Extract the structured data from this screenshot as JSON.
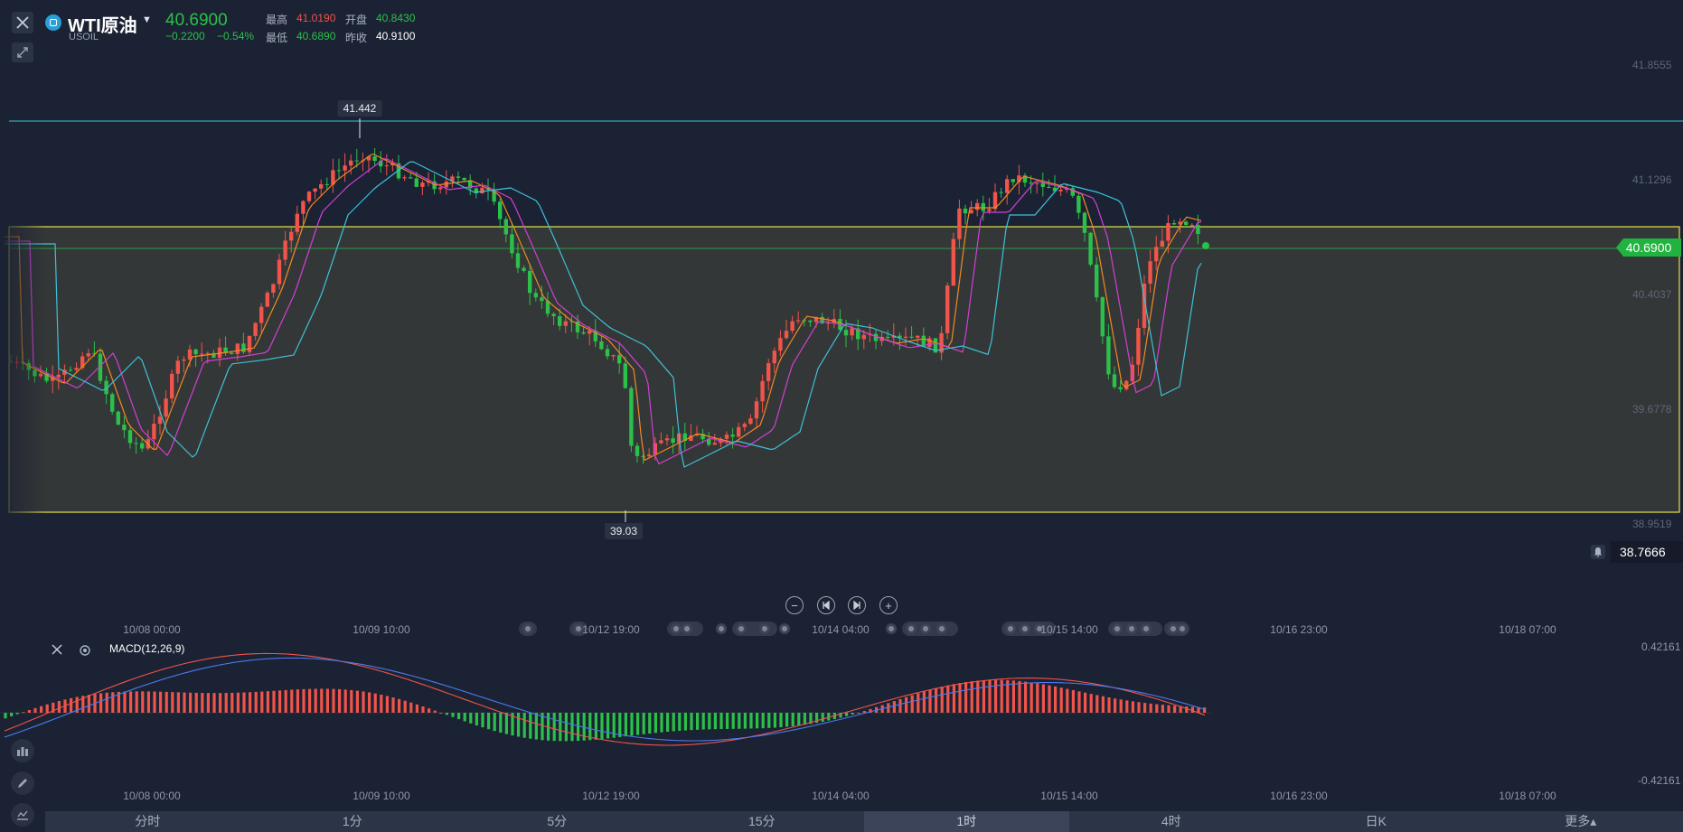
{
  "symbol": {
    "name": "WTI原油",
    "code": "USOIL",
    "price": "40.6900",
    "change": "−0.2200",
    "change_pct": "−0.54%",
    "high_label": "最高",
    "high": "41.0190",
    "open_label": "开盘",
    "open": "40.8430",
    "low_label": "最低",
    "low": "40.6890",
    "prev_close_label": "昨收",
    "prev_close": "40.9100"
  },
  "price_axis": [
    "41.8555",
    "41.1296",
    "40.4037",
    "39.6778",
    "38.9519"
  ],
  "current_price_tag": "40.6900",
  "alert_price": "38.7666",
  "callouts": {
    "high": "41.442",
    "low": "39.03"
  },
  "time_axis": [
    "10/08 00:00",
    "10/09 10:00",
    "10/12 19:00",
    "10/14 04:00",
    "10/15 14:00",
    "10/16 23:00",
    "10/18 07:00"
  ],
  "macd": {
    "label": "MACD(12,26,9)",
    "axis_top": "0.42161",
    "axis_bottom": "-0.42161"
  },
  "timeframes": [
    "分时",
    "1分",
    "5分",
    "15分",
    "1时",
    "4时",
    "日K",
    "更多▴"
  ],
  "active_timeframe": "1时",
  "colors": {
    "up": "#f0544a",
    "down": "#2bc04a",
    "ma_orange": "#f08a24",
    "ma_magenta": "#d23fd6",
    "ma_cyan": "#3ec1d8",
    "rect": "#e6e24a"
  },
  "icons": {
    "close": "close-icon",
    "draw": "pencil-icon",
    "bell": "bell-icon",
    "settings": "gear-icon",
    "zoom_out": "minus-icon",
    "zoom_in": "plus-icon",
    "prev": "skip-back-icon",
    "next": "skip-forward-icon"
  }
}
